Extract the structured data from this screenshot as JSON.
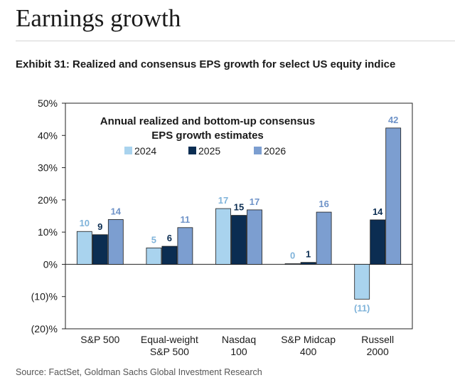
{
  "header": {
    "title": "Earnings growth",
    "exhibit": "Exhibit 31: Realized and consensus EPS growth for select US equity indice"
  },
  "source": "Source: FactSet, Goldman Sachs Global Investment Research",
  "chart_data": {
    "type": "bar",
    "title": "Annual realized and bottom-up consensus EPS growth estimates",
    "title_lines": [
      "Annual realized and bottom-up consensus",
      "EPS growth estimates"
    ],
    "categories": [
      "S&P 500",
      "Equal-weight S&P 500",
      "Nasdaq 100",
      "S&P Midcap 400",
      "Russell 2000"
    ],
    "category_lines": [
      [
        "S&P 500"
      ],
      [
        "Equal-weight",
        "S&P 500"
      ],
      [
        "Nasdaq",
        "100"
      ],
      [
        "S&P Midcap",
        "400"
      ],
      [
        "Russell",
        "2000"
      ]
    ],
    "series": [
      {
        "name": "2024",
        "color": "#a9d3ee",
        "label_color": "#7fb3da",
        "values": [
          10.2,
          5.1,
          17.3,
          0.2,
          -10.8
        ],
        "labels": [
          "10",
          "5",
          "17",
          "0",
          "(11)"
        ]
      },
      {
        "name": "2025",
        "color": "#0b2d52",
        "label_color": "#0b2d52",
        "values": [
          9.2,
          5.6,
          15.2,
          0.6,
          13.8
        ],
        "labels": [
          "9",
          "6",
          "15",
          "1",
          "14"
        ]
      },
      {
        "name": "2026",
        "color": "#7c9ed0",
        "label_color": "#6f93c8",
        "values": [
          13.9,
          11.4,
          16.9,
          16.2,
          42.3
        ],
        "labels": [
          "14",
          "11",
          "17",
          "16",
          "42"
        ]
      }
    ],
    "ylim": [
      -20,
      50
    ],
    "yticks": [
      -20,
      -10,
      0,
      10,
      20,
      30,
      40,
      50
    ],
    "ytick_labels": [
      "(20)%",
      "(10)%",
      "0%",
      "10%",
      "20%",
      "30%",
      "40%",
      "50%"
    ],
    "xlabel": "",
    "ylabel": "",
    "legend_position": "top-center",
    "grid": false
  }
}
